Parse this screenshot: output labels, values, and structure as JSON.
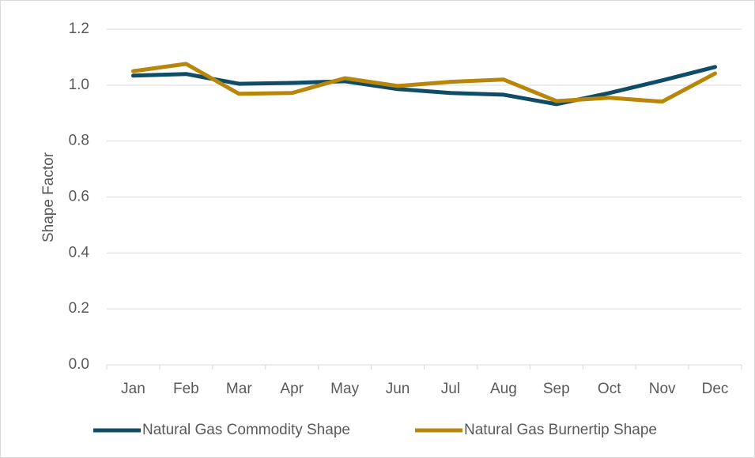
{
  "chart_data": {
    "type": "line",
    "ylabel": "Shape Factor",
    "categories": [
      "Jan",
      "Feb",
      "Mar",
      "Apr",
      "May",
      "Jun",
      "Jul",
      "Aug",
      "Sep",
      "Oct",
      "Nov",
      "Dec"
    ],
    "series": [
      {
        "name": "Natural Gas Commodity Shape",
        "color": "#0f4c66",
        "values": [
          1.034,
          1.04,
          1.005,
          1.008,
          1.014,
          0.986,
          0.972,
          0.966,
          0.932,
          0.972,
          1.017,
          1.065
        ]
      },
      {
        "name": "Natural Gas Burnertip Shape",
        "color": "#b8860b",
        "values": [
          1.05,
          1.076,
          0.969,
          0.972,
          1.025,
          0.997,
          1.012,
          1.02,
          0.943,
          0.955,
          0.941,
          1.042
        ]
      }
    ],
    "ylim": [
      0,
      1.2
    ],
    "yticks": [
      {
        "value": 0,
        "label": "0.0"
      },
      0.2,
      0.4,
      0.6,
      0.8,
      {
        "value": 1,
        "label": "1.0"
      },
      1.2
    ],
    "grid": true,
    "legend": "bottom"
  }
}
